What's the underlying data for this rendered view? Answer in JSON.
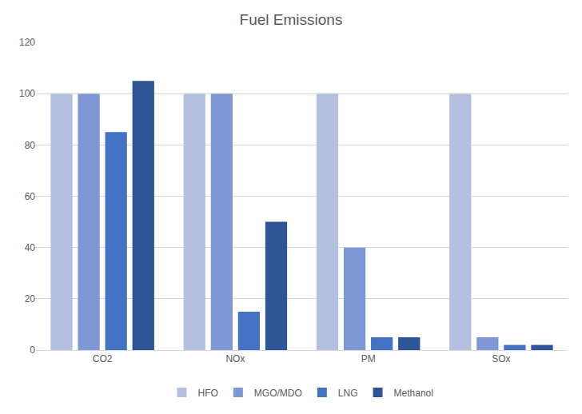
{
  "chart_data": {
    "type": "bar",
    "title": "Fuel Emissions",
    "categories": [
      "CO2",
      "NOx",
      "PM",
      "SOx"
    ],
    "series": [
      {
        "name": "HFO",
        "color": "#b4c0e0",
        "values": [
          100,
          100,
          100,
          100
        ]
      },
      {
        "name": "MGO/MDO",
        "color": "#7f97d4",
        "values": [
          100,
          100,
          40,
          5
        ]
      },
      {
        "name": "LNG",
        "color": "#4472c4",
        "values": [
          85,
          15,
          5,
          2
        ]
      },
      {
        "name": "Methanol",
        "color": "#2f5597",
        "values": [
          105,
          50,
          5,
          2
        ]
      }
    ],
    "ylim": [
      0,
      120
    ],
    "yticks": [
      0,
      20,
      40,
      60,
      80,
      100,
      120
    ],
    "grid": true,
    "legend": "bottom"
  }
}
